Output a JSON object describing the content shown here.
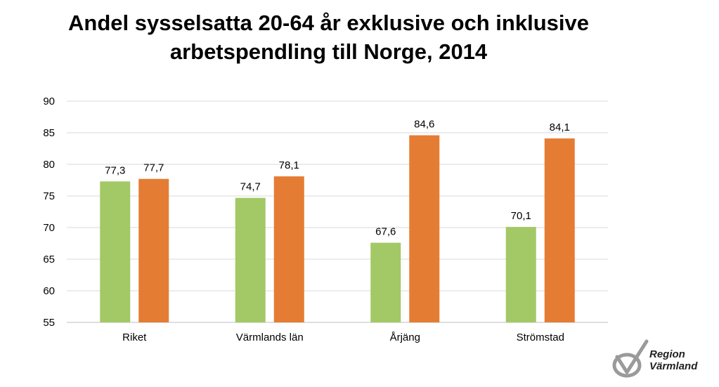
{
  "title_lines": [
    "Andel sysselsatta 20-64 år exklusive och inklusive",
    "arbetspendling till Norge, 2014"
  ],
  "logo": {
    "line1": "Region",
    "line2": "Värmland",
    "mark": "region-varmland-logo"
  },
  "colors": {
    "series1": "#a3c866",
    "series2": "#e57c34",
    "grid": "#d9d9d9",
    "axis": "#bfbfbf",
    "text": "#000000"
  },
  "chart_data": {
    "type": "bar",
    "title": "Andel sysselsatta 20-64 år exklusive och inklusive arbetspendling till Norge, 2014",
    "categories": [
      "Riket",
      "Värmlands län",
      "Årjäng",
      "Strömstad"
    ],
    "series": [
      {
        "values": [
          77.3,
          74.7,
          67.6,
          70.1
        ],
        "labels": [
          "77,3",
          "74,7",
          "67,6",
          "70,1"
        ],
        "color": "#a3c866"
      },
      {
        "values": [
          77.7,
          78.1,
          84.6,
          84.1
        ],
        "labels": [
          "77,7",
          "78,1",
          "84,6",
          "84,1"
        ],
        "color": "#e57c34"
      }
    ],
    "ylim": [
      55,
      90
    ],
    "yticks": [
      55,
      60,
      65,
      70,
      75,
      80,
      85,
      90
    ],
    "grid": true,
    "legend": "none",
    "xlabel": "",
    "ylabel": ""
  }
}
